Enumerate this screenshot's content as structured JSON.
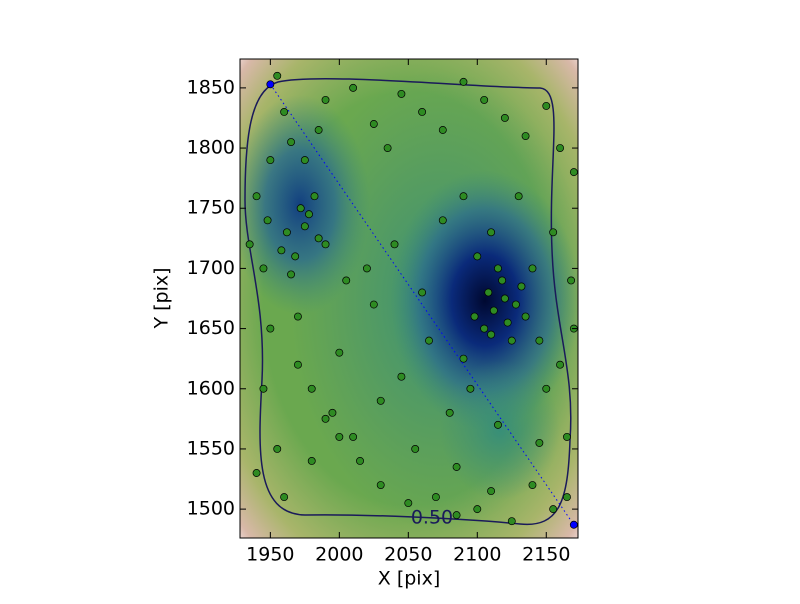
{
  "chart_data": {
    "type": "scatter",
    "x_label": "X [pix]",
    "y_label": "Y [pix]",
    "annotations": [
      "0.50"
    ],
    "xlim": [
      1928,
      2173
    ],
    "ylim": [
      1476,
      1874
    ],
    "xticks": [
      1950,
      2000,
      2050,
      2100,
      2150
    ],
    "yticks": [
      1500,
      1550,
      1600,
      1650,
      1700,
      1750,
      1800,
      1850
    ],
    "series": [
      {
        "color": "#2e8b22",
        "x": [
          1955,
          1960,
          1965,
          1975,
          1985,
          1990,
          2010,
          2025,
          2035,
          2045,
          2060,
          2075,
          2090,
          2105,
          2120,
          2135,
          2150,
          2160,
          2170,
          1940,
          1945,
          1950,
          1970,
          1980,
          1995,
          2000,
          2015,
          2030,
          2050,
          2070,
          2085,
          2100,
          2110,
          2125,
          2140,
          2155,
          2165,
          1935,
          1948,
          1962,
          1972,
          1978,
          1985,
          1968,
          1975,
          1990,
          1982,
          1965,
          1958,
          2108,
          2112,
          2118,
          2122,
          2128,
          2105,
          2115,
          2125,
          2098,
          2132,
          2120,
          2110,
          2135,
          2100,
          2090,
          2140,
          2145,
          1945,
          1955,
          1990,
          2010,
          2030,
          2045,
          2065,
          2080,
          2095,
          2150,
          2165,
          1940,
          1960,
          1980,
          2005,
          2020,
          2040,
          2060,
          2075,
          2090,
          2110,
          2130,
          2155,
          2168,
          1950,
          1970,
          2000,
          2025,
          2055,
          2085,
          2115,
          2145,
          2160,
          2170
        ],
        "values": [
          1860,
          1830,
          1805,
          1790,
          1815,
          1840,
          1850,
          1820,
          1800,
          1845,
          1830,
          1815,
          1855,
          1840,
          1825,
          1810,
          1835,
          1800,
          1780,
          1760,
          1700,
          1650,
          1620,
          1600,
          1580,
          1560,
          1540,
          1520,
          1505,
          1510,
          1495,
          1500,
          1515,
          1490,
          1520,
          1500,
          1510,
          1720,
          1740,
          1730,
          1750,
          1745,
          1725,
          1710,
          1735,
          1720,
          1760,
          1695,
          1715,
          1680,
          1665,
          1690,
          1655,
          1670,
          1650,
          1700,
          1640,
          1660,
          1685,
          1675,
          1645,
          1660,
          1710,
          1625,
          1700,
          1640,
          1600,
          1550,
          1575,
          1560,
          1590,
          1610,
          1640,
          1580,
          1600,
          1600,
          1560,
          1530,
          1510,
          1540,
          1690,
          1700,
          1720,
          1680,
          1740,
          1760,
          1730,
          1760,
          1730,
          1690,
          1790,
          1660,
          1630,
          1670,
          1550,
          1535,
          1570,
          1555,
          1620,
          1650
        ]
      },
      {
        "color": "#0000ff",
        "x": [
          1950,
          2170
        ],
        "values": [
          1853,
          1487
        ],
        "line_style": "dotted"
      }
    ]
  }
}
